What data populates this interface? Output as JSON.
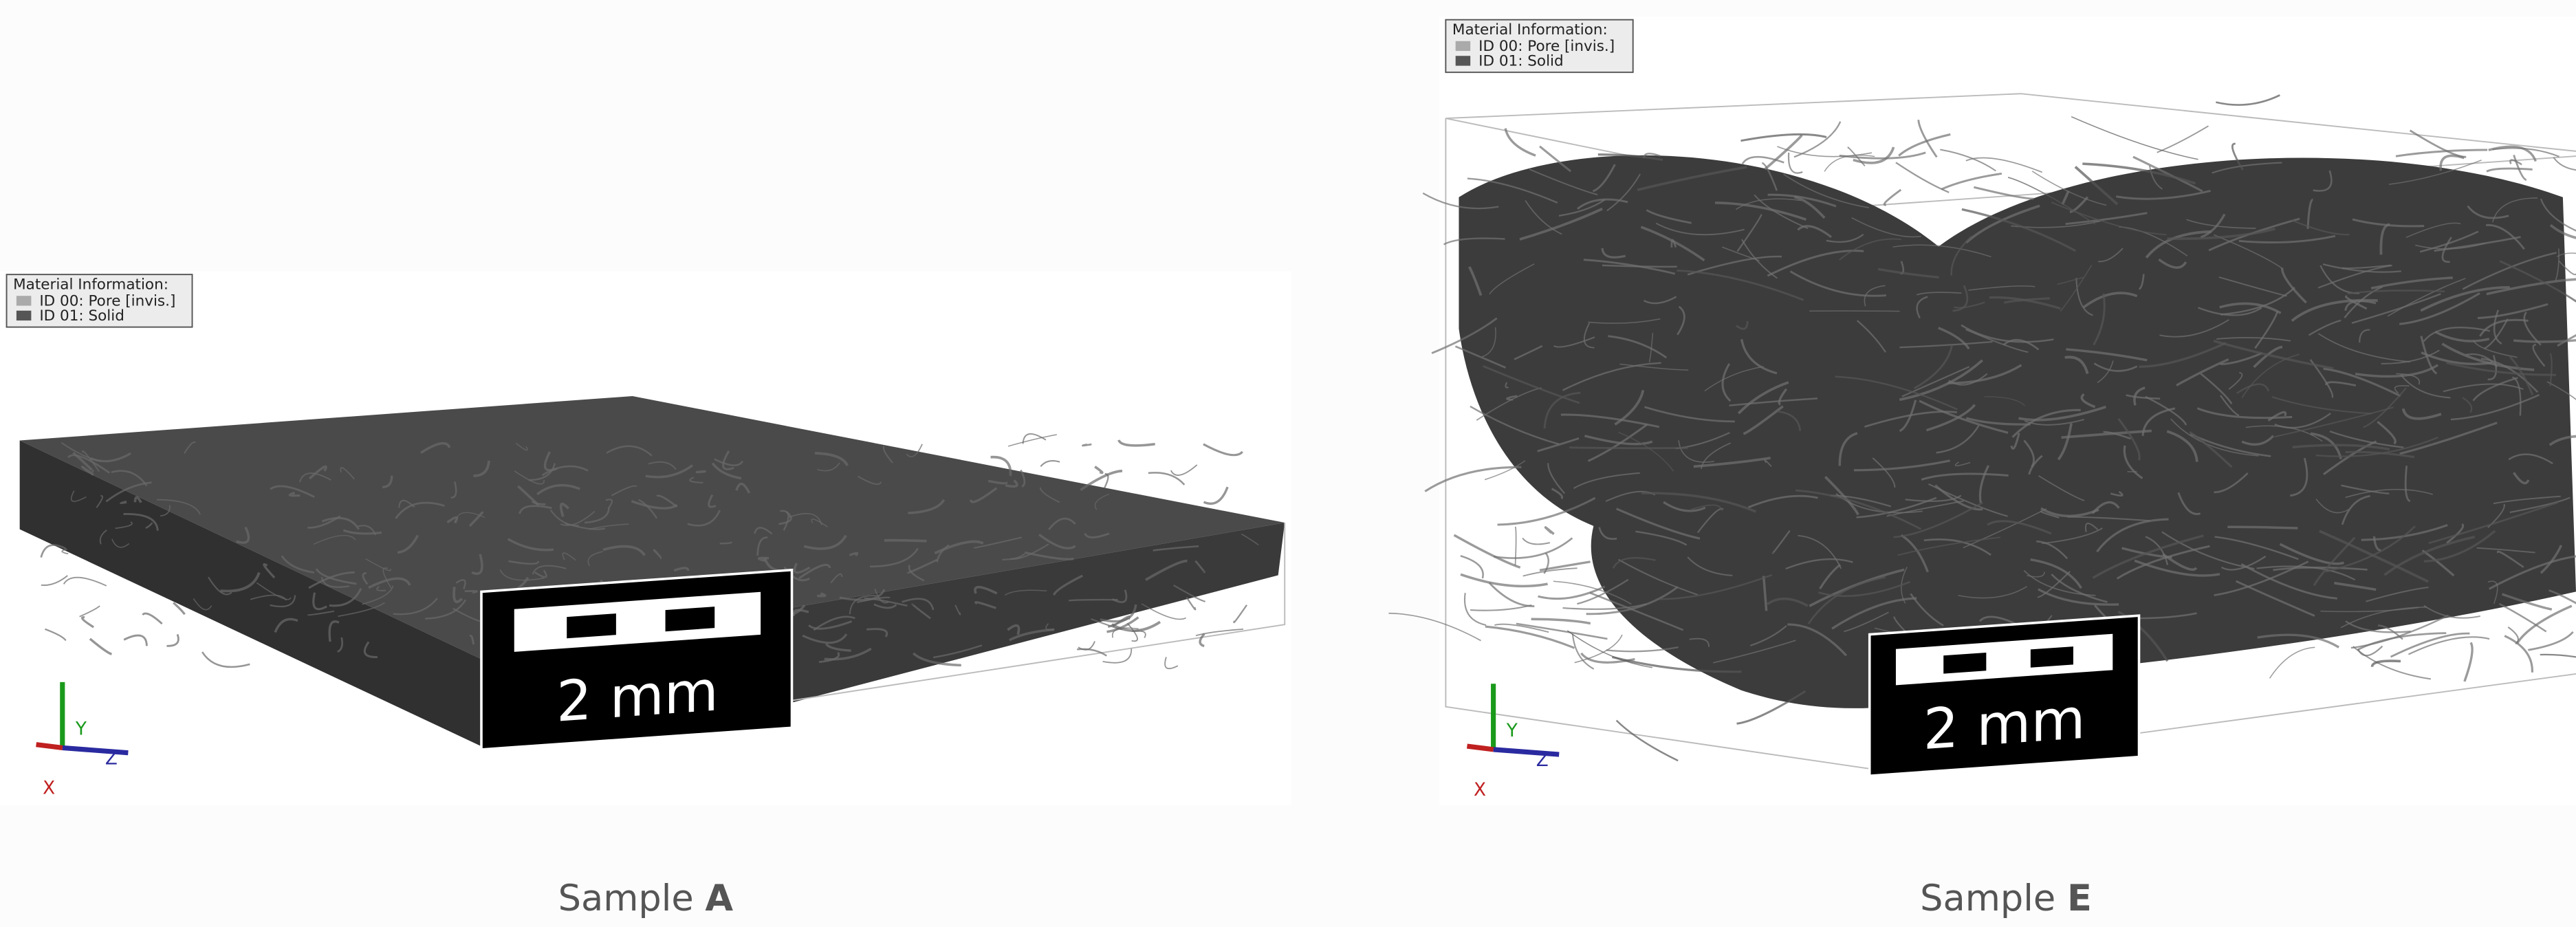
{
  "panels": [
    {
      "legend": {
        "title": "Material Information:",
        "items": [
          "ID 00: Pore [invis.]",
          "ID 01: Solid"
        ]
      },
      "scale_bar": "2 mm",
      "axes": {
        "x": "X",
        "y": "Y",
        "z": "Z"
      },
      "caption": {
        "prefix": "Sample",
        "letter": "A"
      }
    },
    {
      "legend": {
        "title": "Material Information:",
        "items": [
          "ID 00: Pore [invis.]",
          "ID 01: Solid"
        ]
      },
      "scale_bar": "2 mm",
      "axes": {
        "x": "X",
        "y": "Y",
        "z": "Z"
      },
      "caption": {
        "prefix": "Sample",
        "letter": "E"
      }
    }
  ]
}
